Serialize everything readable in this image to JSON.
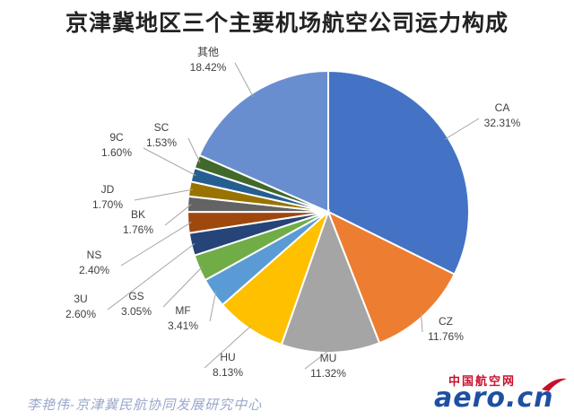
{
  "chart_data": {
    "type": "pie",
    "title": "京津冀地区三个主要机场航空公司运力构成",
    "series": [
      {
        "name": "CA",
        "value": 32.31,
        "label": "32.31%",
        "color": "#4472C4"
      },
      {
        "name": "CZ",
        "value": 11.76,
        "label": "11.76%",
        "color": "#ED7D31"
      },
      {
        "name": "MU",
        "value": 11.32,
        "label": "11.32%",
        "color": "#A5A5A5"
      },
      {
        "name": "HU",
        "value": 8.13,
        "label": "8.13%",
        "color": "#FFC000"
      },
      {
        "name": "MF",
        "value": 3.41,
        "label": "3.41%",
        "color": "#5B9BD5"
      },
      {
        "name": "GS",
        "value": 3.05,
        "label": "3.05%",
        "color": "#70AD47"
      },
      {
        "name": "3U",
        "value": 2.6,
        "label": "2.60%",
        "color": "#264478"
      },
      {
        "name": "NS",
        "value": 2.4,
        "label": "2.40%",
        "color": "#9E480E"
      },
      {
        "name": "BK",
        "value": 1.76,
        "label": "1.76%",
        "color": "#636363"
      },
      {
        "name": "JD",
        "value": 1.7,
        "label": "1.70%",
        "color": "#997300"
      },
      {
        "name": "9C",
        "value": 1.6,
        "label": "1.60%",
        "color": "#255E91"
      },
      {
        "name": "SC",
        "value": 1.53,
        "label": "1.53%",
        "color": "#43682B"
      },
      {
        "name": "其他",
        "value": 18.42,
        "label": "18.42%",
        "color": "#698ED0"
      }
    ],
    "start_angle": "12 o'clock",
    "direction": "clockwise",
    "legend": "none",
    "data_labels": "outside with leader lines"
  },
  "credit": "李艳伟-京津冀民航协同发展研究中心",
  "logo": {
    "cn": "中国航空网",
    "en": "aero.cn"
  }
}
